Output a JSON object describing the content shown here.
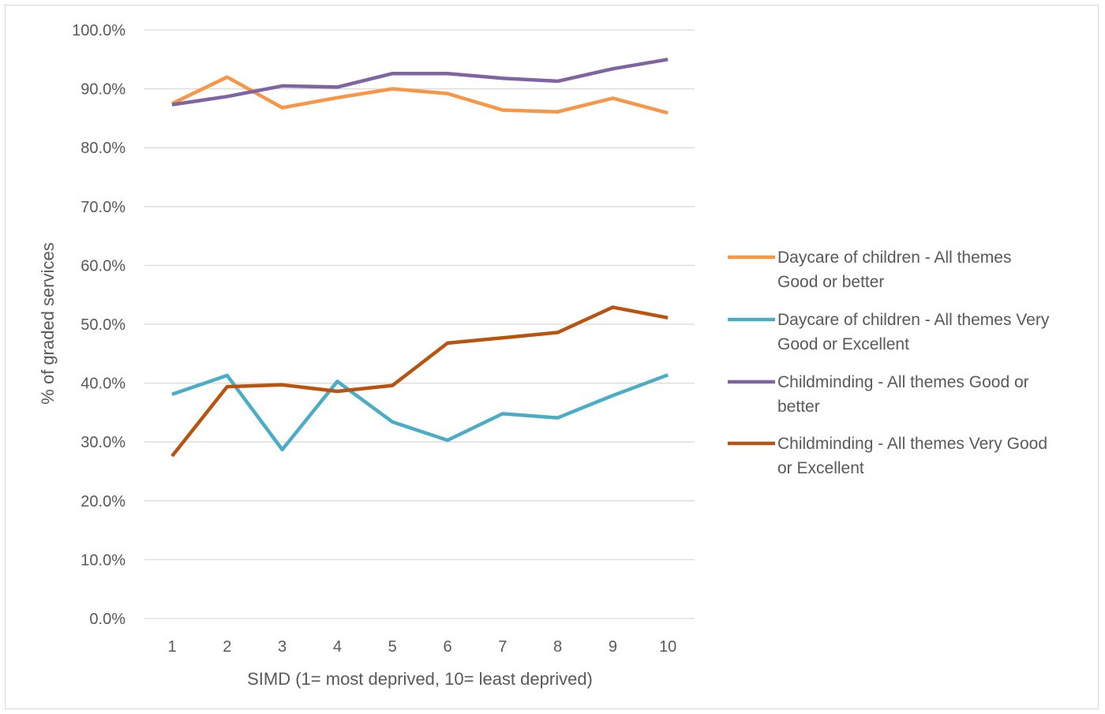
{
  "chart_data": {
    "type": "line",
    "title": "",
    "xlabel": "SIMD (1= most deprived, 10= least deprived)",
    "ylabel": "% of graded services",
    "categories": [
      "1",
      "2",
      "3",
      "4",
      "5",
      "6",
      "7",
      "8",
      "9",
      "10"
    ],
    "y_ticks": [
      "0.0%",
      "10.0%",
      "20.0%",
      "30.0%",
      "40.0%",
      "50.0%",
      "60.0%",
      "70.0%",
      "80.0%",
      "90.0%",
      "100.0%"
    ],
    "ylim": [
      0,
      100
    ],
    "grid": "horizontal",
    "legend_position": "right",
    "series": [
      {
        "name": "Daycare of children - All themes Good or better",
        "legend_lines": [
          "Daycare of children - All themes",
          "Good or better"
        ],
        "color": "#F79646",
        "values": [
          87.5,
          92.0,
          86.8,
          88.5,
          90.0,
          89.2,
          86.4,
          86.1,
          88.4,
          85.9
        ]
      },
      {
        "name": "Daycare of children - All themes Very Good or Excellent",
        "legend_lines": [
          "Daycare of children - All themes Very",
          "Good or Excellent"
        ],
        "color": "#4BACC6",
        "values": [
          38.1,
          41.3,
          28.7,
          40.3,
          33.4,
          30.3,
          34.8,
          34.1,
          37.9,
          41.4
        ]
      },
      {
        "name": "Childminding - All themes Good or better",
        "legend_lines": [
          "Childminding - All themes Good or",
          "better"
        ],
        "color": "#8064A2",
        "values": [
          87.3,
          88.7,
          90.5,
          90.3,
          92.6,
          92.6,
          91.8,
          91.3,
          93.4,
          95.0
        ]
      },
      {
        "name": "Childminding - All themes Very Good or Excellent",
        "legend_lines": [
          "Childminding - All themes Very Good",
          "or Excellent"
        ],
        "color": "#C0504D",
        "stroke": "#B85410",
        "values": [
          27.6,
          39.4,
          39.7,
          38.6,
          39.6,
          46.8,
          47.7,
          48.6,
          52.9,
          51.1
        ]
      }
    ]
  }
}
